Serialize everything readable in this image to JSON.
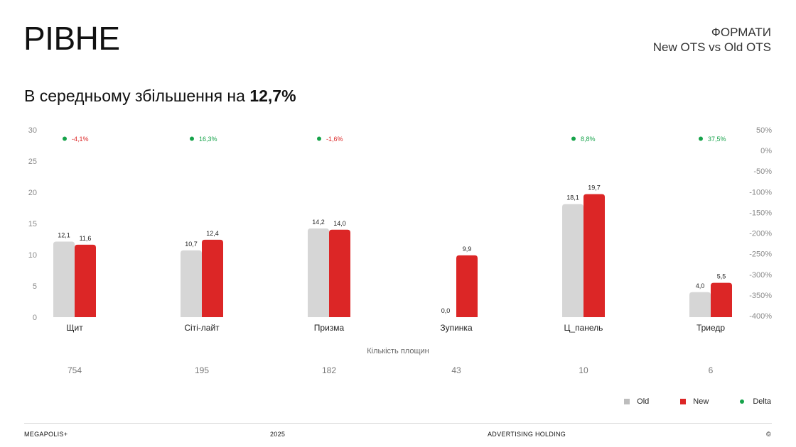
{
  "header": {
    "title": "РІВНЕ",
    "formats_label": "ФОРМАТИ",
    "comparison_label": "New OTS vs Old OTS"
  },
  "subtitle": {
    "text": "В середньому збільшення на ",
    "value": "12,7%"
  },
  "chart_data": {
    "type": "bar",
    "categories": [
      "Щит",
      "Сіті-лайт",
      "Призма",
      "Зупинка",
      "Ц_панель",
      "Триедр"
    ],
    "series": [
      {
        "name": "Old",
        "values": [
          12.1,
          10.7,
          14.2,
          0.0,
          18.1,
          4.0
        ],
        "labels": [
          "12,1",
          "10,7",
          "14,2",
          "0,0",
          "18,1",
          "4,0"
        ],
        "color": "#d6d6d6"
      },
      {
        "name": "New",
        "values": [
          11.6,
          12.4,
          14.0,
          9.9,
          19.7,
          5.5
        ],
        "labels": [
          "11,6",
          "12,4",
          "14,0",
          "9,9",
          "19,7",
          "5,5"
        ],
        "color": "#dc2626"
      }
    ],
    "delta": {
      "name": "Delta",
      "labels": [
        "-4,1%",
        "16,3%",
        "-1,6%",
        null,
        "8,8%",
        "37,5%"
      ],
      "colors": [
        "#dc2626",
        "#16a34a",
        "#dc2626",
        null,
        "#16a34a",
        "#16a34a"
      ],
      "dot_color": "#16a34a"
    },
    "ylim": [
      0,
      30
    ],
    "yticks": [
      "0",
      "5",
      "10",
      "15",
      "20",
      "25",
      "30"
    ],
    "y2ticks": [
      "-400%",
      "-350%",
      "-300%",
      "-250%",
      "-200%",
      "-150%",
      "-100%",
      "-50%",
      "0%",
      "50%"
    ],
    "xlabel": "Кількість площин",
    "counts": [
      "754",
      "195",
      "182",
      "43",
      "10",
      "6"
    ],
    "grid": false,
    "legend": "bottom-right"
  },
  "legend": {
    "old": "Old",
    "new": "New",
    "delta": "Delta",
    "old_color": "#bdbdbd",
    "new_color": "#dc2626",
    "delta_color": "#16a34a"
  },
  "footer": {
    "brand": "MEGAPOLIS+",
    "year": "2025",
    "holding": "ADVERTISING HOLDING",
    "copyright": "©"
  }
}
